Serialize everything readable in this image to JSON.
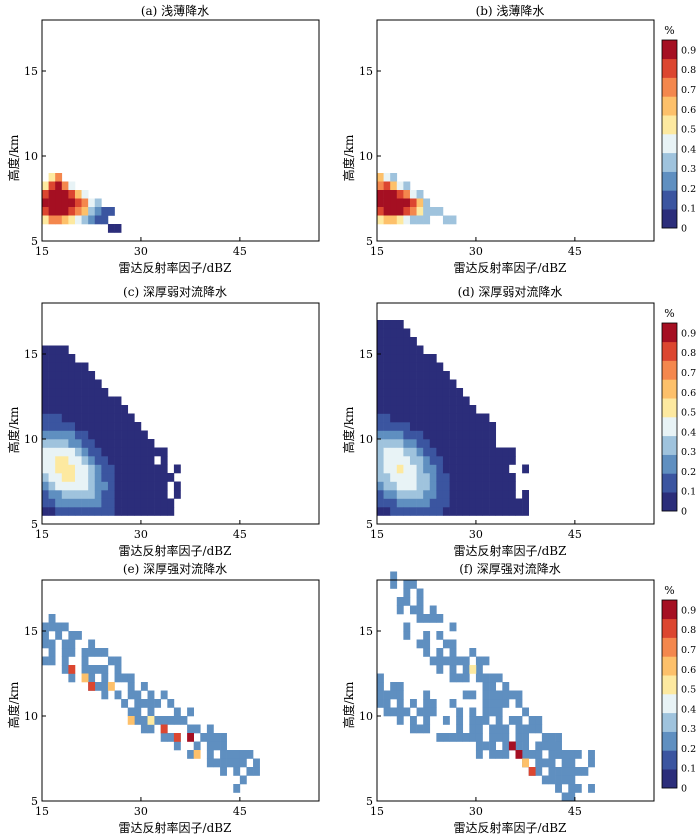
{
  "chart_data": [
    {
      "type": "heatmap",
      "title": "(a) 浅薄降水",
      "xlabel": "雷达反射率因子/dBZ",
      "ylabel": "高度/km",
      "xlim": [
        15,
        57
      ],
      "ylim": [
        5,
        18
      ],
      "xticks": [
        15,
        30,
        45
      ],
      "yticks": [
        5,
        10,
        15
      ],
      "colorbar": false,
      "cells": [
        [
          16,
          8.5,
          0.55
        ],
        [
          17,
          8.5,
          0.75
        ],
        [
          15,
          8.0,
          0.5
        ],
        [
          16,
          8.0,
          0.8
        ],
        [
          17,
          8.0,
          0.9
        ],
        [
          18,
          8.0,
          0.7
        ],
        [
          19,
          8.0,
          0.45
        ],
        [
          15,
          7.5,
          0.8
        ],
        [
          16,
          7.5,
          0.95
        ],
        [
          17,
          7.5,
          0.95
        ],
        [
          18,
          7.5,
          0.9
        ],
        [
          19,
          7.5,
          0.85
        ],
        [
          20,
          7.5,
          0.6
        ],
        [
          21,
          7.5,
          0.4
        ],
        [
          15,
          7.0,
          0.9
        ],
        [
          16,
          7.0,
          0.95
        ],
        [
          17,
          7.0,
          0.95
        ],
        [
          18,
          7.0,
          0.95
        ],
        [
          19,
          7.0,
          0.9
        ],
        [
          20,
          7.0,
          0.85
        ],
        [
          21,
          7.0,
          0.7
        ],
        [
          22,
          7.0,
          0.45
        ],
        [
          23,
          7.0,
          0.3
        ],
        [
          15,
          6.5,
          0.85
        ],
        [
          16,
          6.5,
          0.95
        ],
        [
          17,
          6.5,
          0.95
        ],
        [
          18,
          6.5,
          0.9
        ],
        [
          19,
          6.5,
          0.85
        ],
        [
          20,
          6.5,
          0.75
        ],
        [
          21,
          6.5,
          0.6
        ],
        [
          22,
          6.5,
          0.35
        ],
        [
          23,
          6.5,
          0.25
        ],
        [
          24,
          6.5,
          0.15
        ],
        [
          25,
          6.5,
          0.1
        ],
        [
          15,
          6.0,
          0.55
        ],
        [
          16,
          6.0,
          0.7
        ],
        [
          17,
          6.0,
          0.75
        ],
        [
          18,
          6.0,
          0.65
        ],
        [
          19,
          6.0,
          0.55
        ],
        [
          20,
          6.0,
          0.4
        ],
        [
          21,
          6.0,
          0.3
        ],
        [
          22,
          6.0,
          0.2
        ],
        [
          23,
          6.0,
          0.1
        ],
        [
          24,
          6.0,
          0.1
        ],
        [
          25,
          5.5,
          0.05
        ],
        [
          26,
          5.5,
          0.05
        ]
      ]
    },
    {
      "type": "heatmap",
      "title": "(b) 浅薄降水",
      "xlabel": "雷达反射率因子/dBZ",
      "ylabel": "高度/km",
      "xlim": [
        15,
        57
      ],
      "ylim": [
        5,
        18
      ],
      "xticks": [
        15,
        30,
        45
      ],
      "yticks": [
        5,
        10,
        15
      ],
      "colorbar": true,
      "cells": [
        [
          15,
          8.5,
          0.6
        ],
        [
          16,
          8.5,
          0.45
        ],
        [
          17,
          8.5,
          0.3
        ],
        [
          15,
          8.0,
          0.75
        ],
        [
          16,
          8.0,
          0.85
        ],
        [
          17,
          8.0,
          0.6
        ],
        [
          18,
          8.0,
          0.45
        ],
        [
          19,
          8.0,
          0.3
        ],
        [
          15,
          7.5,
          0.9
        ],
        [
          16,
          7.5,
          0.95
        ],
        [
          17,
          7.5,
          0.95
        ],
        [
          18,
          7.5,
          0.85
        ],
        [
          19,
          7.5,
          0.7
        ],
        [
          20,
          7.5,
          0.4
        ],
        [
          21,
          7.5,
          0.35
        ],
        [
          15,
          7.0,
          0.9
        ],
        [
          16,
          7.0,
          0.95
        ],
        [
          17,
          7.0,
          0.95
        ],
        [
          18,
          7.0,
          0.95
        ],
        [
          19,
          7.0,
          0.9
        ],
        [
          20,
          7.0,
          0.8
        ],
        [
          21,
          7.0,
          0.6
        ],
        [
          22,
          7.0,
          0.3
        ],
        [
          15,
          6.5,
          0.85
        ],
        [
          16,
          6.5,
          0.9
        ],
        [
          17,
          6.5,
          0.95
        ],
        [
          18,
          6.5,
          0.9
        ],
        [
          19,
          6.5,
          0.85
        ],
        [
          20,
          6.5,
          0.7
        ],
        [
          21,
          6.5,
          0.55
        ],
        [
          22,
          6.5,
          0.35
        ],
        [
          23,
          6.5,
          0.35
        ],
        [
          24,
          6.5,
          0.35
        ],
        [
          15,
          6.0,
          0.5
        ],
        [
          16,
          6.0,
          0.65
        ],
        [
          17,
          6.0,
          0.6
        ],
        [
          18,
          6.0,
          0.55
        ],
        [
          19,
          6.0,
          0.45
        ],
        [
          20,
          6.0,
          0.35
        ],
        [
          21,
          6.0,
          0.3
        ],
        [
          22,
          6.0,
          0.35
        ],
        [
          25,
          6.0,
          0.35
        ],
        [
          26,
          6.0,
          0.35
        ]
      ]
    },
    {
      "type": "heatmap",
      "title": "(c) 深厚弱对流降水",
      "xlabel": "雷达反射率因子/dBZ",
      "ylabel": "高度/km",
      "xlim": [
        15,
        57
      ],
      "ylim": [
        5,
        18
      ],
      "xticks": [
        15,
        30,
        45
      ],
      "yticks": [
        5,
        10,
        15
      ],
      "colorbar": false,
      "band": {
        "peak": [
          18,
          8.0
        ],
        "x_range": [
          15,
          35
        ],
        "y_range": [
          5.5,
          15.0
        ],
        "slope": -0.5,
        "peak_value": 0.55
      }
    },
    {
      "type": "heatmap",
      "title": "(d) 深厚弱对流降水",
      "xlabel": "雷达反射率因子/dBZ",
      "ylabel": "高度/km",
      "xlim": [
        15,
        57
      ],
      "ylim": [
        5,
        18
      ],
      "xticks": [
        15,
        30,
        45
      ],
      "yticks": [
        5,
        10,
        15
      ],
      "colorbar": true,
      "band": {
        "peak": [
          18,
          8.0
        ],
        "x_range": [
          15,
          37
        ],
        "y_range": [
          5.5,
          16.5
        ],
        "slope": -0.45,
        "peak_value": 0.5
      }
    },
    {
      "type": "heatmap",
      "title": "(e) 深厚强对流降水",
      "xlabel": "雷达反射率因子/dBZ",
      "ylabel": "高度/km",
      "xlim": [
        15,
        57
      ],
      "ylim": [
        5,
        18
      ],
      "xticks": [
        15,
        30,
        45
      ],
      "yticks": [
        5,
        10,
        15
      ],
      "colorbar": false,
      "bands": [
        {
          "from": [
            15,
            14.5
          ],
          "to": [
            47,
            6.0
          ],
          "width": 1.3,
          "value": 0.25
        }
      ],
      "highlights": [
        [
          19,
          12.5,
          0.85
        ],
        [
          21,
          12.0,
          0.6
        ],
        [
          22,
          11.5,
          0.85
        ],
        [
          25,
          11.5,
          0.6
        ],
        [
          28,
          9.5,
          0.65
        ],
        [
          31,
          9.5,
          0.55
        ],
        [
          33,
          9.0,
          0.85
        ],
        [
          35,
          8.5,
          0.85
        ],
        [
          37,
          8.5,
          0.9
        ],
        [
          38,
          7.5,
          0.6
        ]
      ]
    },
    {
      "type": "heatmap",
      "title": "(f) 深厚强对流降水",
      "xlabel": "雷达反射率因子/dBZ",
      "ylabel": "高度/km",
      "xlim": [
        15,
        57
      ],
      "ylim": [
        5,
        18
      ],
      "xticks": [
        15,
        30,
        45
      ],
      "yticks": [
        5,
        10,
        15
      ],
      "colorbar": true,
      "bands": [
        {
          "from": [
            17,
            17.0
          ],
          "to": [
            44,
            6.0
          ],
          "width": 1.5,
          "value": 0.25
        },
        {
          "from": [
            15,
            11.0
          ],
          "to": [
            47,
            6.5
          ],
          "width": 1.2,
          "value": 0.25
        }
      ],
      "highlights": [
        [
          29,
          12.5,
          0.55
        ],
        [
          35,
          8.0,
          0.95
        ],
        [
          36,
          7.5,
          0.9
        ],
        [
          37,
          7.0,
          0.6
        ],
        [
          38,
          6.5,
          0.85
        ]
      ]
    }
  ],
  "colorbar": {
    "unit": "%",
    "ticks": [
      "0",
      "0.1",
      "0.2",
      "0.3",
      "0.4",
      "0.5",
      "0.6",
      "0.7",
      "0.8",
      "0.9"
    ],
    "colors": [
      "#2b2d7a",
      "#3b55a0",
      "#5f8fc0",
      "#9fc3dd",
      "#e8f3f6",
      "#fde9a0",
      "#fdc06a",
      "#f4874d",
      "#dc4630",
      "#a50f22"
    ]
  }
}
